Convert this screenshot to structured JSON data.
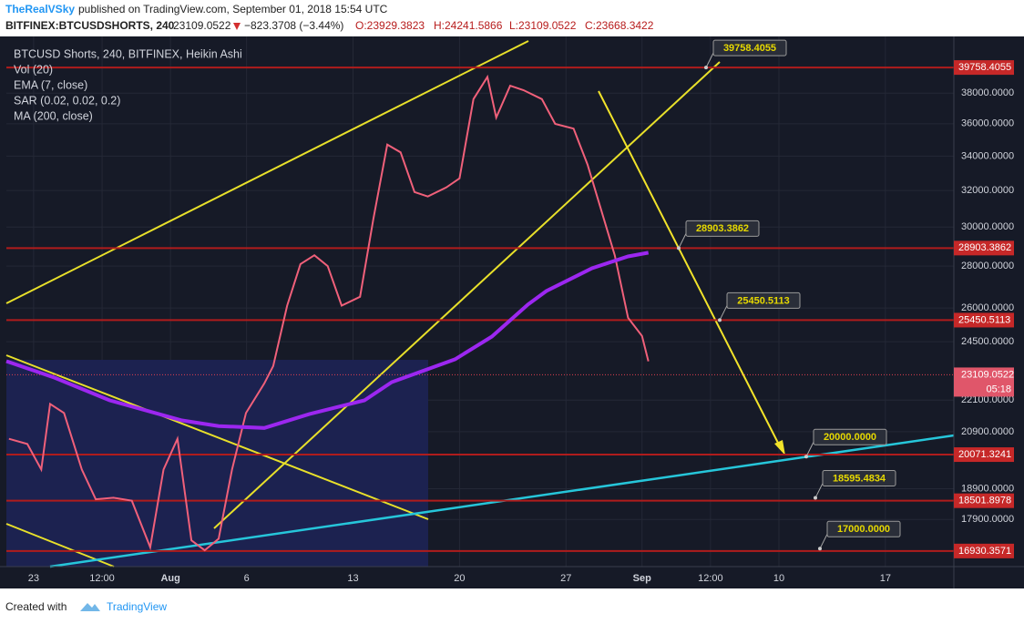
{
  "header": {
    "author": "TheRealVSky",
    "published": "published on TradingView.com, September 01, 2018 15:54 UTC",
    "symbol": "BITFINEX:BTCUSDSHORTS, 240",
    "last": "23109.0522",
    "change": "−823.3708 (−3.44%)",
    "open": "O:23929.3823",
    "high": "H:24241.5866",
    "low": "L:23109.0522",
    "close": "C:23668.3422"
  },
  "chart_data": {
    "type": "line",
    "log_scale": true,
    "grid": true,
    "xlim": [
      "2018-07-21T05:00",
      "2018-09-21T12:00"
    ],
    "xticks": [
      {
        "value": "2018-07-23T00:00",
        "label": "23"
      },
      {
        "value": "2018-07-27T12:00",
        "label": "12:00"
      },
      {
        "value": "2018-08-01T00:00",
        "label": "Aug"
      },
      {
        "value": "2018-08-06T00:00",
        "label": "6"
      },
      {
        "value": "2018-08-13T00:00",
        "label": "13"
      },
      {
        "value": "2018-08-20T00:00",
        "label": "20"
      },
      {
        "value": "2018-08-27T00:00",
        "label": "27"
      },
      {
        "value": "2018-09-01T00:00",
        "label": "Sep"
      },
      {
        "value": "2018-09-05T12:00",
        "label": "12:00"
      },
      {
        "value": "2018-09-10T00:00",
        "label": "10"
      },
      {
        "value": "2018-09-17T00:00",
        "label": "17"
      }
    ],
    "ylim": [
      16470,
      42000
    ],
    "yticks": [
      {
        "value": 17900,
        "label": "17900.0000"
      },
      {
        "value": 18900,
        "label": "18900.0000"
      },
      {
        "value": 20900,
        "label": "20900.0000"
      },
      {
        "value": 22100,
        "label": "22100.0000"
      },
      {
        "value": 24500,
        "label": "24500.0000"
      },
      {
        "value": 26000,
        "label": "26000.0000"
      },
      {
        "value": 28000,
        "label": "28000.0000"
      },
      {
        "value": 30000,
        "label": "30000.0000"
      },
      {
        "value": 32000,
        "label": "32000.0000"
      },
      {
        "value": 34000,
        "label": "34000.0000"
      },
      {
        "value": 36000,
        "label": "36000.0000"
      },
      {
        "value": 38000,
        "label": "38000.0000"
      }
    ],
    "series": [
      {
        "name": "BTCUSD Shorts, 240, BITFINEX, Heikin Ashi",
        "color": "#f0607a",
        "x": [
          "2018-07-21T09:00",
          "2018-07-22T14:00",
          "2018-07-23T12:00",
          "2018-07-24T02:00",
          "2018-07-25T00:00",
          "2018-07-26T04:00",
          "2018-07-27T02:00",
          "2018-07-28T06:00",
          "2018-07-29T11:00",
          "2018-07-30T16:00",
          "2018-07-31T13:00",
          "2018-08-01T11:00",
          "2018-08-02T09:00",
          "2018-08-03T06:00",
          "2018-08-04T04:00",
          "2018-08-05T01:00",
          "2018-08-05T23:00",
          "2018-08-07T04:00",
          "2018-08-07T18:00",
          "2018-08-08T16:00",
          "2018-08-09T13:00",
          "2018-08-10T11:00",
          "2018-08-11T08:00",
          "2018-08-12T06:00",
          "2018-08-13T11:00",
          "2018-08-14T08:00",
          "2018-08-15T06:00",
          "2018-08-16T03:00",
          "2018-08-17T01:00",
          "2018-08-17T22:00",
          "2018-08-19T03:00",
          "2018-08-20T00:00",
          "2018-08-20T22:00",
          "2018-08-21T20:00",
          "2018-08-22T10:00",
          "2018-08-23T08:00",
          "2018-08-24T05:00",
          "2018-08-25T10:00",
          "2018-08-26T07:00",
          "2018-08-27T12:00",
          "2018-08-28T10:00",
          "2018-08-29T07:00",
          "2018-08-30T05:00",
          "2018-08-31T02:00",
          "2018-09-01T00:00",
          "2018-09-01T10:00"
        ],
        "values": [
          20640,
          20450,
          19550,
          21950,
          21600,
          19550,
          18550,
          18600,
          18500,
          17040,
          19550,
          20640,
          17250,
          16950,
          17300,
          19550,
          21600,
          22760,
          23470,
          26110,
          28100,
          28540,
          28000,
          26110,
          26520,
          30420,
          34700,
          34230,
          31910,
          31660,
          32170,
          32690,
          37600,
          39100,
          36400,
          38500,
          38200,
          37600,
          35990,
          35690,
          33500,
          30980,
          28540,
          25560,
          24750,
          23668
        ]
      },
      {
        "name": "MA (200, close)",
        "color": "#9c27f0",
        "x": [
          "2018-07-21T05:00",
          "2018-07-24T09:00",
          "2018-07-28T00:00",
          "2018-08-01T18:00",
          "2018-08-04T04:00",
          "2018-08-07T04:00",
          "2018-08-10T03:00",
          "2018-08-13T18:00",
          "2018-08-15T13:00",
          "2018-08-19T17:00",
          "2018-08-22T03:00",
          "2018-08-24T12:00",
          "2018-08-25T17:00",
          "2018-08-28T17:00",
          "2018-08-31T02:00",
          "2018-09-01T10:00"
        ],
        "values": [
          23670,
          22990,
          22090,
          21320,
          21110,
          21040,
          21560,
          22090,
          22810,
          23750,
          24720,
          26160,
          26790,
          27890,
          28480,
          28670
        ]
      }
    ],
    "studies": [
      "Vol (20)",
      "EMA (7, close)",
      "SAR (0.02, 0.02, 0.2)"
    ],
    "levels": [
      {
        "value": 39758.4055
      },
      {
        "value": 28903.3862
      },
      {
        "value": 25450.5113
      },
      {
        "value": 23109.0522,
        "current": true
      },
      {
        "value": 20071.3241
      },
      {
        "value": 18501.8978
      },
      {
        "value": 16930.3571
      }
    ],
    "countdown": "05:18",
    "annotations": [
      39758.4055,
      28903.3862,
      25450.5113,
      {
        "value": 20000,
        "label": "20000.0000"
      },
      18595.4834,
      {
        "value": 17000,
        "label": "17000.0000"
      }
    ]
  },
  "footer": {
    "created": "Created with",
    "brand": "TradingView"
  }
}
